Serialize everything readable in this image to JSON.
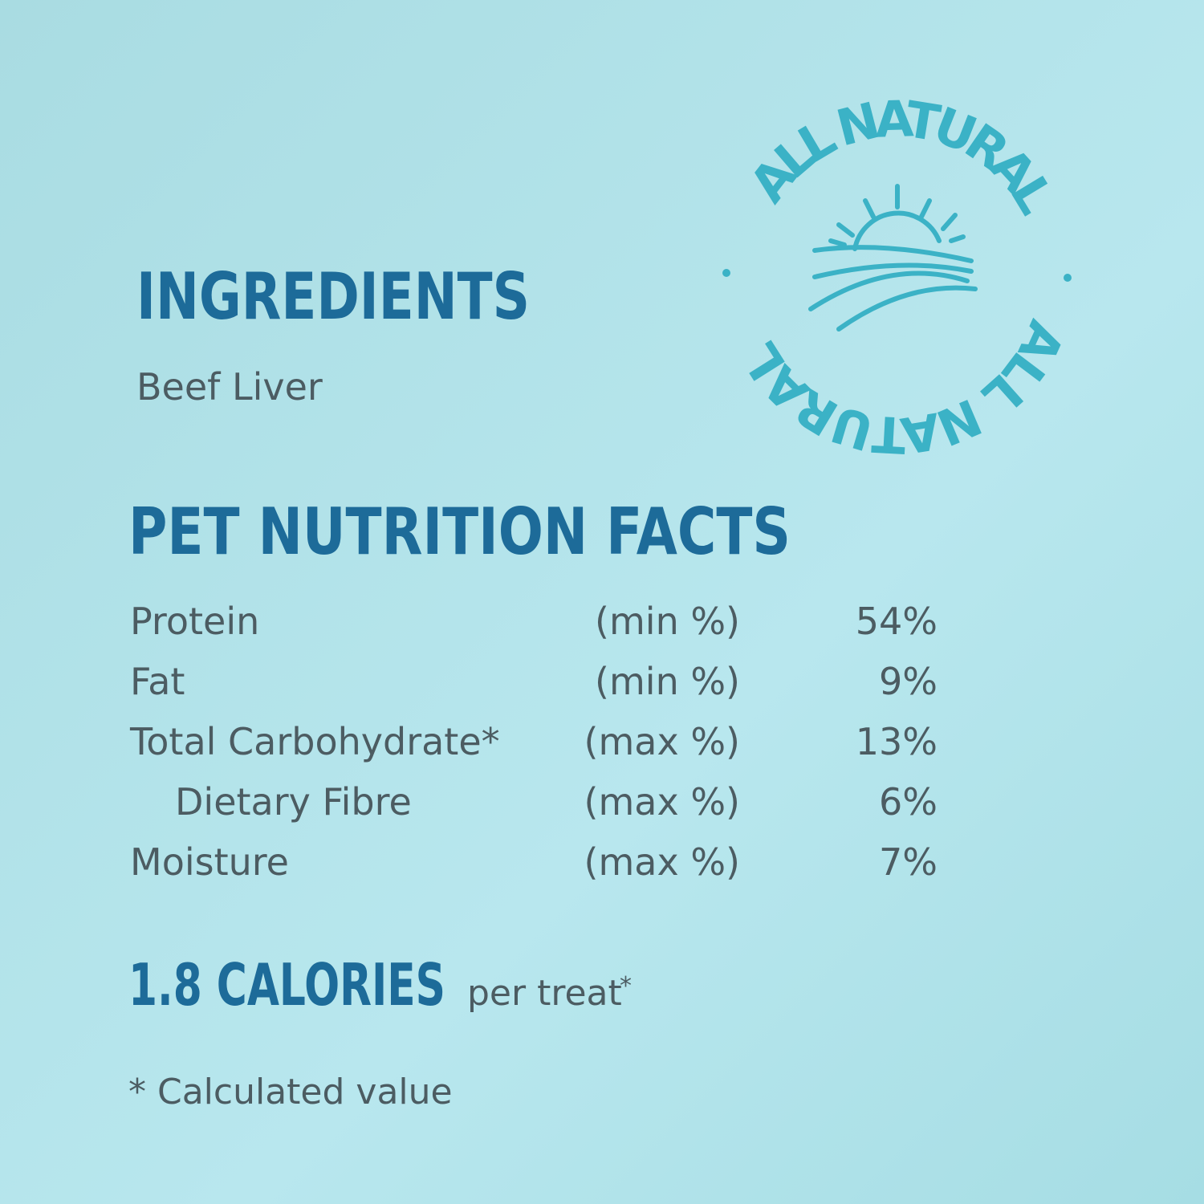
{
  "badge": {
    "texts": [
      "ALL NATURAL",
      "ALL NATURAL"
    ]
  },
  "ingredients": {
    "title": "INGREDIENTS",
    "text": "Beef Liver"
  },
  "nutrition": {
    "title": "PET NUTRITION FACTS",
    "rows": [
      {
        "name": "Protein",
        "basis": "(min %)",
        "value": "54%"
      },
      {
        "name": "Fat",
        "basis": "(min %)",
        "value": "9%"
      },
      {
        "name": "Total Carbohydrate*",
        "basis": "(max %)",
        "value": "13%"
      },
      {
        "name": "Dietary Fibre",
        "basis": "(max %)",
        "value": "6%"
      },
      {
        "name": "Moisture",
        "basis": "(max %)",
        "value": "7%"
      }
    ]
  },
  "calories": {
    "headline": "1.8 CALORIES",
    "unit": "per treat",
    "mark": "*"
  },
  "footnote": "* Calculated value"
}
